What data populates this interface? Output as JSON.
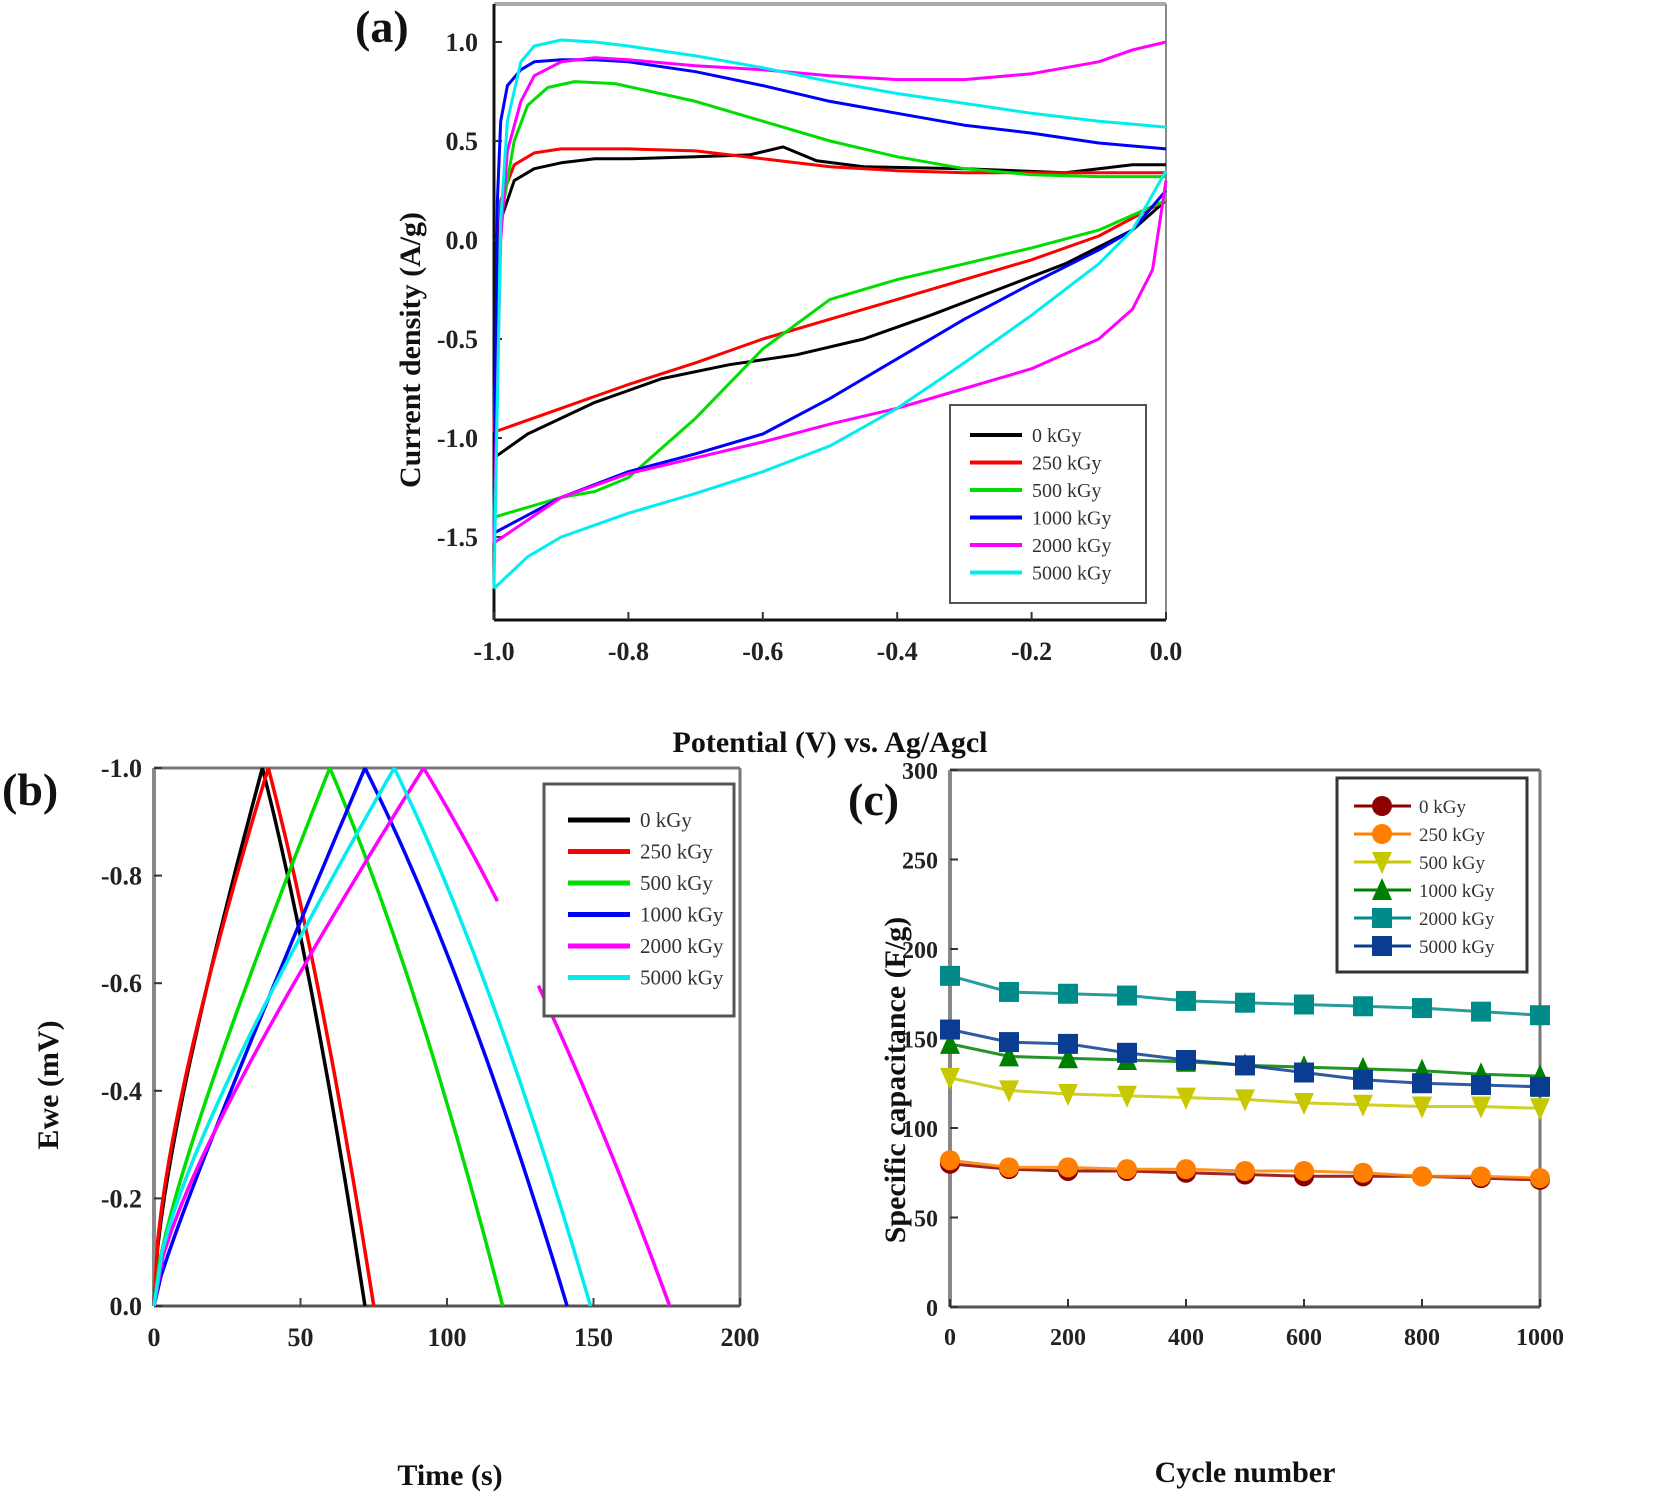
{
  "figure": {
    "panels": [
      "(a)",
      "(b)",
      "(c)"
    ]
  },
  "chart_data": [
    {
      "id": "a",
      "panel_label": "(a)",
      "type": "line",
      "subtype": "cyclic voltammetry",
      "title": "",
      "xlabel": "Potential (V) vs. Ag/Agcl",
      "ylabel": "Current density (A/g)",
      "xlim": [
        -1.0,
        0.0
      ],
      "ylim": [
        -1.85,
        1.2
      ],
      "xticks": [
        -1.0,
        -0.8,
        -0.6,
        -0.4,
        -0.2,
        0.0
      ],
      "xtick_labels": [
        "-1.0",
        "-0.8",
        "-0.6",
        "-0.4",
        "-0.2",
        "0.0"
      ],
      "yticks": [
        -1.5,
        -1.0,
        -0.5,
        0.0,
        0.5,
        1.0
      ],
      "ytick_labels": [
        "-1.5",
        "-1.0",
        "-0.5",
        "0.0",
        "0.5",
        "1.0"
      ],
      "grid": false,
      "legend_position": "bottom-right",
      "series": [
        {
          "name": "0 kGy",
          "color": "#000000",
          "upper": {
            "x": [
              -1.0,
              -0.99,
              -0.97,
              -0.94,
              -0.9,
              -0.85,
              -0.8,
              -0.7,
              -0.62,
              -0.57,
              -0.52,
              -0.45,
              -0.3,
              -0.15,
              -0.05,
              0.0
            ],
            "y": [
              -1.0,
              0.1,
              0.3,
              0.36,
              0.39,
              0.41,
              0.41,
              0.42,
              0.43,
              0.47,
              0.4,
              0.37,
              0.36,
              0.34,
              0.38,
              0.38
            ]
          },
          "lower": {
            "x": [
              -1.0,
              -0.95,
              -0.85,
              -0.75,
              -0.65,
              -0.55,
              -0.45,
              -0.35,
              -0.25,
              -0.15,
              -0.05,
              0.0
            ],
            "y": [
              -1.1,
              -0.98,
              -0.82,
              -0.7,
              -0.63,
              -0.58,
              -0.5,
              -0.38,
              -0.25,
              -0.12,
              0.05,
              0.2
            ]
          }
        },
        {
          "name": "250 kGy",
          "color": "#ff0000",
          "upper": {
            "x": [
              -1.0,
              -0.99,
              -0.97,
              -0.94,
              -0.9,
              -0.85,
              -0.8,
              -0.7,
              -0.6,
              -0.5,
              -0.4,
              -0.3,
              -0.2,
              -0.1,
              0.0
            ],
            "y": [
              -0.95,
              0.2,
              0.38,
              0.44,
              0.46,
              0.46,
              0.46,
              0.45,
              0.41,
              0.37,
              0.35,
              0.34,
              0.34,
              0.34,
              0.34
            ]
          },
          "lower": {
            "x": [
              -1.0,
              -0.9,
              -0.8,
              -0.7,
              -0.6,
              -0.5,
              -0.4,
              -0.3,
              -0.2,
              -0.1,
              0.0
            ],
            "y": [
              -0.97,
              -0.85,
              -0.73,
              -0.62,
              -0.5,
              -0.4,
              -0.3,
              -0.2,
              -0.1,
              0.02,
              0.2
            ]
          }
        },
        {
          "name": "500 kGy",
          "color": "#00dd00",
          "upper": {
            "x": [
              -1.0,
              -0.99,
              -0.97,
              -0.95,
              -0.92,
              -0.88,
              -0.82,
              -0.7,
              -0.6,
              -0.5,
              -0.4,
              -0.3,
              -0.2,
              -0.1,
              0.0
            ],
            "y": [
              -1.38,
              0.1,
              0.5,
              0.68,
              0.77,
              0.8,
              0.79,
              0.7,
              0.6,
              0.5,
              0.42,
              0.36,
              0.33,
              0.32,
              0.32
            ]
          },
          "lower": {
            "x": [
              -1.0,
              -0.95,
              -0.9,
              -0.85,
              -0.8,
              -0.75,
              -0.7,
              -0.6,
              -0.5,
              -0.4,
              -0.3,
              -0.2,
              -0.1,
              0.0
            ],
            "y": [
              -1.4,
              -1.35,
              -1.3,
              -1.27,
              -1.2,
              -1.05,
              -0.9,
              -0.55,
              -0.3,
              -0.2,
              -0.12,
              -0.04,
              0.05,
              0.2
            ]
          }
        },
        {
          "name": "1000 kGy",
          "color": "#0000ff",
          "upper": {
            "x": [
              -1.0,
              -0.995,
              -0.99,
              -0.98,
              -0.96,
              -0.94,
              -0.9,
              -0.85,
              -0.8,
              -0.7,
              -0.6,
              -0.5,
              -0.4,
              -0.3,
              -0.2,
              -0.1,
              0.0
            ],
            "y": [
              -1.5,
              0.2,
              0.6,
              0.78,
              0.86,
              0.9,
              0.91,
              0.91,
              0.9,
              0.85,
              0.78,
              0.7,
              0.64,
              0.58,
              0.54,
              0.49,
              0.46
            ]
          },
          "lower": {
            "x": [
              -1.0,
              -0.9,
              -0.8,
              -0.7,
              -0.6,
              -0.5,
              -0.4,
              -0.3,
              -0.2,
              -0.1,
              -0.05,
              0.0
            ],
            "y": [
              -1.48,
              -1.3,
              -1.17,
              -1.08,
              -0.98,
              -0.8,
              -0.6,
              -0.4,
              -0.22,
              -0.05,
              0.05,
              0.25
            ]
          }
        },
        {
          "name": "2000 kGy",
          "color": "#ff00ff",
          "upper": {
            "x": [
              -1.0,
              -0.99,
              -0.98,
              -0.96,
              -0.94,
              -0.9,
              -0.85,
              -0.8,
              -0.7,
              -0.6,
              -0.5,
              -0.4,
              -0.3,
              -0.2,
              -0.1,
              -0.05,
              0.0
            ],
            "y": [
              -1.5,
              0.0,
              0.45,
              0.7,
              0.83,
              0.9,
              0.92,
              0.91,
              0.88,
              0.86,
              0.83,
              0.81,
              0.81,
              0.84,
              0.9,
              0.96,
              1.0
            ]
          },
          "lower": {
            "x": [
              -1.0,
              -0.9,
              -0.8,
              -0.7,
              -0.6,
              -0.5,
              -0.4,
              -0.3,
              -0.2,
              -0.1,
              -0.05,
              -0.02,
              0.0
            ],
            "y": [
              -1.53,
              -1.3,
              -1.18,
              -1.1,
              -1.02,
              -0.93,
              -0.85,
              -0.75,
              -0.65,
              -0.5,
              -0.35,
              -0.15,
              0.3
            ]
          }
        },
        {
          "name": "5000 kGy",
          "color": "#00eeee",
          "upper": {
            "x": [
              -1.0,
              -0.99,
              -0.98,
              -0.96,
              -0.94,
              -0.9,
              -0.85,
              -0.8,
              -0.7,
              -0.6,
              -0.5,
              -0.4,
              -0.3,
              -0.2,
              -0.1,
              0.0
            ],
            "y": [
              -1.75,
              0.1,
              0.6,
              0.9,
              0.98,
              1.01,
              1.0,
              0.98,
              0.93,
              0.87,
              0.8,
              0.74,
              0.69,
              0.64,
              0.6,
              0.57
            ]
          },
          "lower": {
            "x": [
              -1.0,
              -0.95,
              -0.9,
              -0.8,
              -0.7,
              -0.6,
              -0.5,
              -0.4,
              -0.3,
              -0.2,
              -0.1,
              -0.05,
              0.0
            ],
            "y": [
              -1.76,
              -1.6,
              -1.5,
              -1.38,
              -1.28,
              -1.17,
              -1.04,
              -0.85,
              -0.62,
              -0.38,
              -0.12,
              0.05,
              0.35
            ]
          }
        }
      ]
    },
    {
      "id": "b",
      "panel_label": "(b)",
      "type": "line",
      "subtype": "galvanostatic charge-discharge",
      "title": "",
      "xlabel": "Time (s)",
      "ylabel": "Ewe (mV)",
      "xlim": [
        0,
        200
      ],
      "ylim": [
        0.0,
        -1.0
      ],
      "xticks": [
        0,
        50,
        100,
        150,
        200
      ],
      "xtick_labels": [
        "0",
        "50",
        "100",
        "150",
        "200"
      ],
      "yticks": [
        0.0,
        -0.2,
        -0.4,
        -0.6,
        -0.8,
        -1.0
      ],
      "ytick_labels": [
        "0.0",
        "-0.2",
        "-0.4",
        "-0.6",
        "-0.8",
        "-1.0"
      ],
      "grid": false,
      "legend_position": "top-right",
      "series": [
        {
          "name": "0 kGy",
          "color": "#000000",
          "peak_time": 37,
          "end_time": 72,
          "curvature": 0.5
        },
        {
          "name": "250 kGy",
          "color": "#ff0000",
          "peak_time": 39,
          "end_time": 75,
          "curvature": 0.6
        },
        {
          "name": "500 kGy",
          "color": "#00dd00",
          "peak_time": 60,
          "end_time": 119,
          "curvature": 0.35
        },
        {
          "name": "1000 kGy",
          "color": "#0000ff",
          "peak_time": 72,
          "end_time": 141,
          "curvature": 0.15
        },
        {
          "name": "2000 kGy",
          "color": "#ff00ff",
          "peak_time": 92,
          "end_time": 176,
          "curvature": 0.4,
          "gap_between": [
            -0.74,
            -0.6
          ]
        },
        {
          "name": "5000 kGy",
          "color": "#00eeee",
          "peak_time": 82,
          "end_time": 149,
          "curvature": 0.45
        }
      ]
    },
    {
      "id": "c",
      "panel_label": "(c)",
      "type": "line",
      "subtype": "line with markers",
      "title": "",
      "xlabel": "Cycle number",
      "ylabel": "Specific capacitance (F/g)",
      "xlim": [
        0,
        1000
      ],
      "ylim": [
        0,
        300
      ],
      "xticks": [
        0,
        200,
        400,
        600,
        800,
        1000
      ],
      "xtick_labels": [
        "0",
        "200",
        "400",
        "600",
        "800",
        "1000"
      ],
      "yticks": [
        0,
        50,
        100,
        150,
        200,
        250,
        300
      ],
      "ytick_labels": [
        "0",
        "50",
        "100",
        "150",
        "200",
        "250",
        "300"
      ],
      "grid": false,
      "legend_position": "top-right",
      "x": [
        0,
        100,
        200,
        300,
        400,
        500,
        600,
        700,
        800,
        900,
        1000
      ],
      "series": [
        {
          "name": "0  kGy",
          "color": "#8b0000",
          "marker": "circle",
          "values": [
            80,
            77,
            76,
            76,
            75,
            74,
            73,
            73,
            73,
            72,
            71
          ]
        },
        {
          "name": "250 kGy",
          "color": "#ff8000",
          "marker": "circle",
          "values": [
            82,
            78,
            78,
            77,
            77,
            76,
            76,
            75,
            73,
            73,
            72
          ]
        },
        {
          "name": "500 kGy",
          "color": "#c8c800",
          "marker": "triangle-down",
          "values": [
            128,
            121,
            119,
            118,
            117,
            116,
            114,
            113,
            112,
            112,
            111
          ]
        },
        {
          "name": "1000 kGy",
          "color": "#008000",
          "marker": "triangle-up",
          "values": [
            147,
            140,
            139,
            138,
            137,
            135,
            134,
            133,
            132,
            130,
            129
          ]
        },
        {
          "name": "2000 kGy",
          "color": "#008b8b",
          "marker": "square",
          "values": [
            185,
            176,
            175,
            174,
            171,
            170,
            169,
            168,
            167,
            165,
            163
          ]
        },
        {
          "name": "5000 kGy",
          "color": "#0a3d91",
          "marker": "square",
          "values": [
            155,
            148,
            147,
            142,
            138,
            135,
            131,
            127,
            125,
            124,
            123
          ]
        }
      ]
    }
  ]
}
